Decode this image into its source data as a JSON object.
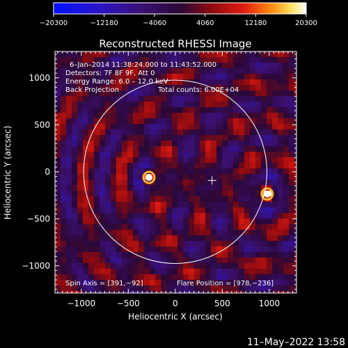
{
  "chart_data": {
    "type": "heatmap",
    "title": "Reconstructed RHESSI Image",
    "xlabel": "Heliocentric X (arcsec)",
    "ylabel": "Heliocentric Y (arcsec)",
    "xlim": [
      -1280,
      1290
    ],
    "ylim": [
      -1290,
      1280
    ],
    "xticks": [
      -1000,
      -500,
      0,
      500,
      1000
    ],
    "xtick_labels": [
      "−1000",
      "−500",
      "0",
      "500",
      "1000"
    ],
    "yticks": [
      -1000,
      -500,
      0,
      500,
      1000
    ],
    "ytick_labels": [
      "−1000",
      "−500",
      "0",
      "500",
      "1000"
    ],
    "colorbar": {
      "min": -20300,
      "max": 20300,
      "ticks": [
        -20300,
        -12180,
        -4060,
        4060,
        12180,
        20300
      ],
      "tick_labels": [
        "−20300",
        "−12180",
        "−4060",
        "4060",
        "12180",
        "20300"
      ],
      "colormap": "blue-purple-red-yellow-white"
    },
    "annotations": {
      "date_range": "6–Jan–2014 11:38:24.000 to 11:43:52.000",
      "detectors": "Detectors: 7F 8F 9F, Att 0",
      "energy_range": "Energy Range: 6.0 – 12.0 keV",
      "method": "Back Projection",
      "total_counts": "Total counts: 6.00E+04",
      "spin_axis": "Spin Axis = [391,−92]",
      "flare_position": "Flare Position = [978,−236]"
    },
    "solar_disk": {
      "center": [
        0,
        0
      ],
      "radius_arcsec": 975
    },
    "sources": [
      {
        "x": 978,
        "y": -236,
        "intensity": 20300
      },
      {
        "x": -280,
        "y": -60,
        "intensity": 14000
      }
    ],
    "cross_marker": {
      "x": 391,
      "y": -92
    },
    "grid": false
  },
  "footer": {
    "timestamp": "11–May–2022 13:58"
  },
  "colors": {
    "background": "#000000",
    "foreground": "#ffffff"
  }
}
